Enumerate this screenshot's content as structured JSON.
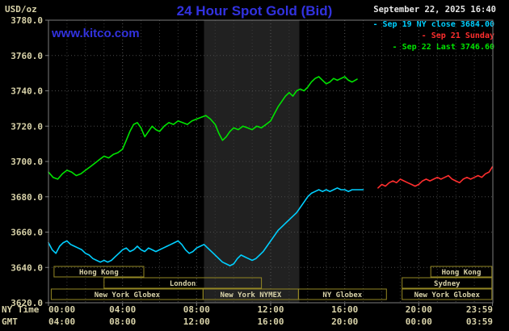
{
  "header": {
    "units_label": "USD/oz",
    "title": "24 Hour Spot Gold (Bid)",
    "datetime": "September 22, 2025 16:40",
    "watermark": "www.kitco.com",
    "legend_marker": "-",
    "legend": [
      {
        "label": "Sep 19 NY close 3684.00",
        "color": "#00cfff"
      },
      {
        "label": "Sep 21 Sunday",
        "color": "#ff2e2e"
      },
      {
        "label": "Sep 22 Last 3746.60",
        "color": "#00e400"
      }
    ]
  },
  "axes": {
    "ny_time_label": "NY Time",
    "gmt_label": "GMT",
    "ny_ticks": [
      "00:00",
      "04:00",
      "08:00",
      "12:00",
      "16:00",
      "20:00",
      "23:59"
    ],
    "gmt_ticks": [
      "04:00",
      "08:00",
      "12:00",
      "16:00",
      "20:00",
      "00:00",
      "03:59"
    ],
    "y_ticks": [
      {
        "label": "3780.0",
        "value": 3780
      },
      {
        "label": "3760.0",
        "value": 3760
      },
      {
        "label": "3740.0",
        "value": 3740
      },
      {
        "label": "3720.0",
        "value": 3720
      },
      {
        "label": "3700.0",
        "value": 3700
      },
      {
        "label": "3680.0",
        "value": 3680
      },
      {
        "label": "3660.0",
        "value": 3660
      },
      {
        "label": "3640.0",
        "value": 3640
      },
      {
        "label": "3620.0",
        "value": 3620
      }
    ]
  },
  "chart_data": {
    "type": "line",
    "title": "24 Hour Spot Gold (Bid)",
    "ylabel": "USD/oz",
    "ylim": [
      3620,
      3780
    ],
    "xlim_hours": [
      0,
      24
    ],
    "x_tick_hours": [
      0,
      4,
      8,
      12,
      16,
      20,
      23.983
    ],
    "grid": true,
    "nymex_shade_hours": [
      8.4,
      13.55
    ],
    "colors": {
      "khaki_text": "#d8d2a8",
      "session_border": "#948724",
      "frame": "#7d7d7d",
      "grid_minor": "#3a3a3a",
      "grid_major": "#565656",
      "shade": "#212121"
    },
    "series": [
      {
        "id": "sep19",
        "name": "Sep 19 NY close 3684.00",
        "color": "#00cfff",
        "points": [
          [
            0,
            3654
          ],
          [
            0.2,
            3650
          ],
          [
            0.4,
            3648
          ],
          [
            0.6,
            3652
          ],
          [
            0.8,
            3654
          ],
          [
            1,
            3655
          ],
          [
            1.2,
            3653
          ],
          [
            1.4,
            3652
          ],
          [
            1.6,
            3651
          ],
          [
            1.8,
            3650
          ],
          [
            2,
            3648
          ],
          [
            2.2,
            3647
          ],
          [
            2.4,
            3645
          ],
          [
            2.6,
            3644
          ],
          [
            2.8,
            3643
          ],
          [
            3,
            3644
          ],
          [
            3.2,
            3643
          ],
          [
            3.4,
            3644
          ],
          [
            3.6,
            3646
          ],
          [
            3.8,
            3648
          ],
          [
            4,
            3650
          ],
          [
            4.2,
            3651
          ],
          [
            4.4,
            3649
          ],
          [
            4.6,
            3650
          ],
          [
            4.8,
            3652
          ],
          [
            5,
            3650
          ],
          [
            5.2,
            3649
          ],
          [
            5.4,
            3651
          ],
          [
            5.6,
            3650
          ],
          [
            5.8,
            3649
          ],
          [
            6,
            3650
          ],
          [
            6.2,
            3651
          ],
          [
            6.4,
            3652
          ],
          [
            6.6,
            3653
          ],
          [
            6.8,
            3654
          ],
          [
            7,
            3655
          ],
          [
            7.2,
            3653
          ],
          [
            7.4,
            3650
          ],
          [
            7.6,
            3648
          ],
          [
            7.8,
            3649
          ],
          [
            8,
            3651
          ],
          [
            8.2,
            3652
          ],
          [
            8.4,
            3653
          ],
          [
            8.6,
            3651
          ],
          [
            8.8,
            3649
          ],
          [
            9,
            3647
          ],
          [
            9.2,
            3645
          ],
          [
            9.4,
            3643
          ],
          [
            9.6,
            3642
          ],
          [
            9.8,
            3641
          ],
          [
            10,
            3642
          ],
          [
            10.2,
            3645
          ],
          [
            10.4,
            3647
          ],
          [
            10.6,
            3646
          ],
          [
            10.8,
            3645
          ],
          [
            11,
            3644
          ],
          [
            11.2,
            3645
          ],
          [
            11.4,
            3647
          ],
          [
            11.6,
            3649
          ],
          [
            11.8,
            3652
          ],
          [
            12,
            3655
          ],
          [
            12.2,
            3658
          ],
          [
            12.4,
            3661
          ],
          [
            12.6,
            3663
          ],
          [
            12.8,
            3665
          ],
          [
            13,
            3667
          ],
          [
            13.2,
            3669
          ],
          [
            13.4,
            3671
          ],
          [
            13.6,
            3674
          ],
          [
            13.8,
            3677
          ],
          [
            14,
            3680
          ],
          [
            14.2,
            3682
          ],
          [
            14.4,
            3683
          ],
          [
            14.6,
            3684
          ],
          [
            14.8,
            3683
          ],
          [
            15,
            3684
          ],
          [
            15.2,
            3683
          ],
          [
            15.4,
            3684
          ],
          [
            15.6,
            3685
          ],
          [
            15.8,
            3684
          ],
          [
            16,
            3684
          ],
          [
            16.2,
            3683
          ],
          [
            16.4,
            3684
          ],
          [
            16.6,
            3684
          ],
          [
            16.8,
            3684
          ],
          [
            17,
            3684
          ]
        ]
      },
      {
        "id": "sep21",
        "name": "Sep 21 Sunday",
        "color": "#ff2e2e",
        "points": [
          [
            17.8,
            3685
          ],
          [
            18,
            3687
          ],
          [
            18.2,
            3686
          ],
          [
            18.4,
            3688
          ],
          [
            18.6,
            3689
          ],
          [
            18.8,
            3688
          ],
          [
            19,
            3690
          ],
          [
            19.2,
            3689
          ],
          [
            19.4,
            3688
          ],
          [
            19.6,
            3687
          ],
          [
            19.8,
            3686
          ],
          [
            20,
            3687
          ],
          [
            20.2,
            3689
          ],
          [
            20.4,
            3690
          ],
          [
            20.6,
            3689
          ],
          [
            20.8,
            3690
          ],
          [
            21,
            3691
          ],
          [
            21.2,
            3690
          ],
          [
            21.4,
            3691
          ],
          [
            21.6,
            3692
          ],
          [
            21.8,
            3690
          ],
          [
            22,
            3689
          ],
          [
            22.2,
            3688
          ],
          [
            22.4,
            3690
          ],
          [
            22.6,
            3691
          ],
          [
            22.8,
            3690
          ],
          [
            23,
            3691
          ],
          [
            23.2,
            3692
          ],
          [
            23.4,
            3691
          ],
          [
            23.6,
            3693
          ],
          [
            23.8,
            3694
          ],
          [
            23.98,
            3697
          ]
        ]
      },
      {
        "id": "sep22",
        "name": "Sep 22 Last 3746.60",
        "color": "#00e400",
        "points": [
          [
            0,
            3694
          ],
          [
            0.25,
            3691
          ],
          [
            0.5,
            3690
          ],
          [
            0.75,
            3693
          ],
          [
            1,
            3695
          ],
          [
            1.25,
            3694
          ],
          [
            1.5,
            3692
          ],
          [
            1.75,
            3693
          ],
          [
            2,
            3695
          ],
          [
            2.25,
            3697
          ],
          [
            2.5,
            3699
          ],
          [
            2.75,
            3701
          ],
          [
            3,
            3703
          ],
          [
            3.25,
            3702
          ],
          [
            3.5,
            3704
          ],
          [
            3.75,
            3705
          ],
          [
            4,
            3707
          ],
          [
            4.2,
            3712
          ],
          [
            4.4,
            3717
          ],
          [
            4.6,
            3721
          ],
          [
            4.8,
            3722
          ],
          [
            5,
            3719
          ],
          [
            5.2,
            3714
          ],
          [
            5.4,
            3717
          ],
          [
            5.6,
            3720
          ],
          [
            5.8,
            3718
          ],
          [
            6,
            3717
          ],
          [
            6.25,
            3720
          ],
          [
            6.5,
            3722
          ],
          [
            6.75,
            3721
          ],
          [
            7,
            3723
          ],
          [
            7.25,
            3722
          ],
          [
            7.5,
            3721
          ],
          [
            7.75,
            3723
          ],
          [
            8,
            3724
          ],
          [
            8.25,
            3725
          ],
          [
            8.5,
            3726
          ],
          [
            8.75,
            3724
          ],
          [
            9,
            3721
          ],
          [
            9.2,
            3716
          ],
          [
            9.4,
            3712
          ],
          [
            9.6,
            3714
          ],
          [
            9.8,
            3717
          ],
          [
            10,
            3719
          ],
          [
            10.25,
            3718
          ],
          [
            10.5,
            3720
          ],
          [
            10.75,
            3719
          ],
          [
            11,
            3718
          ],
          [
            11.25,
            3720
          ],
          [
            11.5,
            3719
          ],
          [
            11.75,
            3721
          ],
          [
            12,
            3723
          ],
          [
            12.2,
            3727
          ],
          [
            12.4,
            3731
          ],
          [
            12.6,
            3734
          ],
          [
            12.8,
            3737
          ],
          [
            13,
            3739
          ],
          [
            13.2,
            3737
          ],
          [
            13.4,
            3740
          ],
          [
            13.6,
            3741
          ],
          [
            13.8,
            3740
          ],
          [
            14,
            3742
          ],
          [
            14.2,
            3745
          ],
          [
            14.4,
            3747
          ],
          [
            14.6,
            3748
          ],
          [
            14.8,
            3746
          ],
          [
            15,
            3744
          ],
          [
            15.2,
            3745
          ],
          [
            15.4,
            3747
          ],
          [
            15.6,
            3746
          ],
          [
            15.8,
            3747
          ],
          [
            16,
            3748
          ],
          [
            16.2,
            3746
          ],
          [
            16.4,
            3745
          ],
          [
            16.67,
            3746.6
          ]
        ]
      }
    ],
    "sessions": [
      [
        {
          "label": "Hong Kong",
          "start": 0.3,
          "end": 5.15
        },
        {
          "label": "Hong Kong",
          "start": 20.65,
          "end": 23.95
        }
      ],
      [
        {
          "label": "London",
          "start": 3.0,
          "end": 11.5
        },
        {
          "label": "Sydney",
          "start": 19.1,
          "end": 23.95
        }
      ],
      [
        {
          "label": "New York Globex",
          "start": 0.15,
          "end": 8.35
        },
        {
          "label": "New York NYMEX",
          "start": 8.35,
          "end": 13.5
        },
        {
          "label": "NY Globex",
          "start": 13.5,
          "end": 18.25
        },
        {
          "label": "New York Globex",
          "start": 19.1,
          "end": 23.95
        }
      ]
    ]
  }
}
